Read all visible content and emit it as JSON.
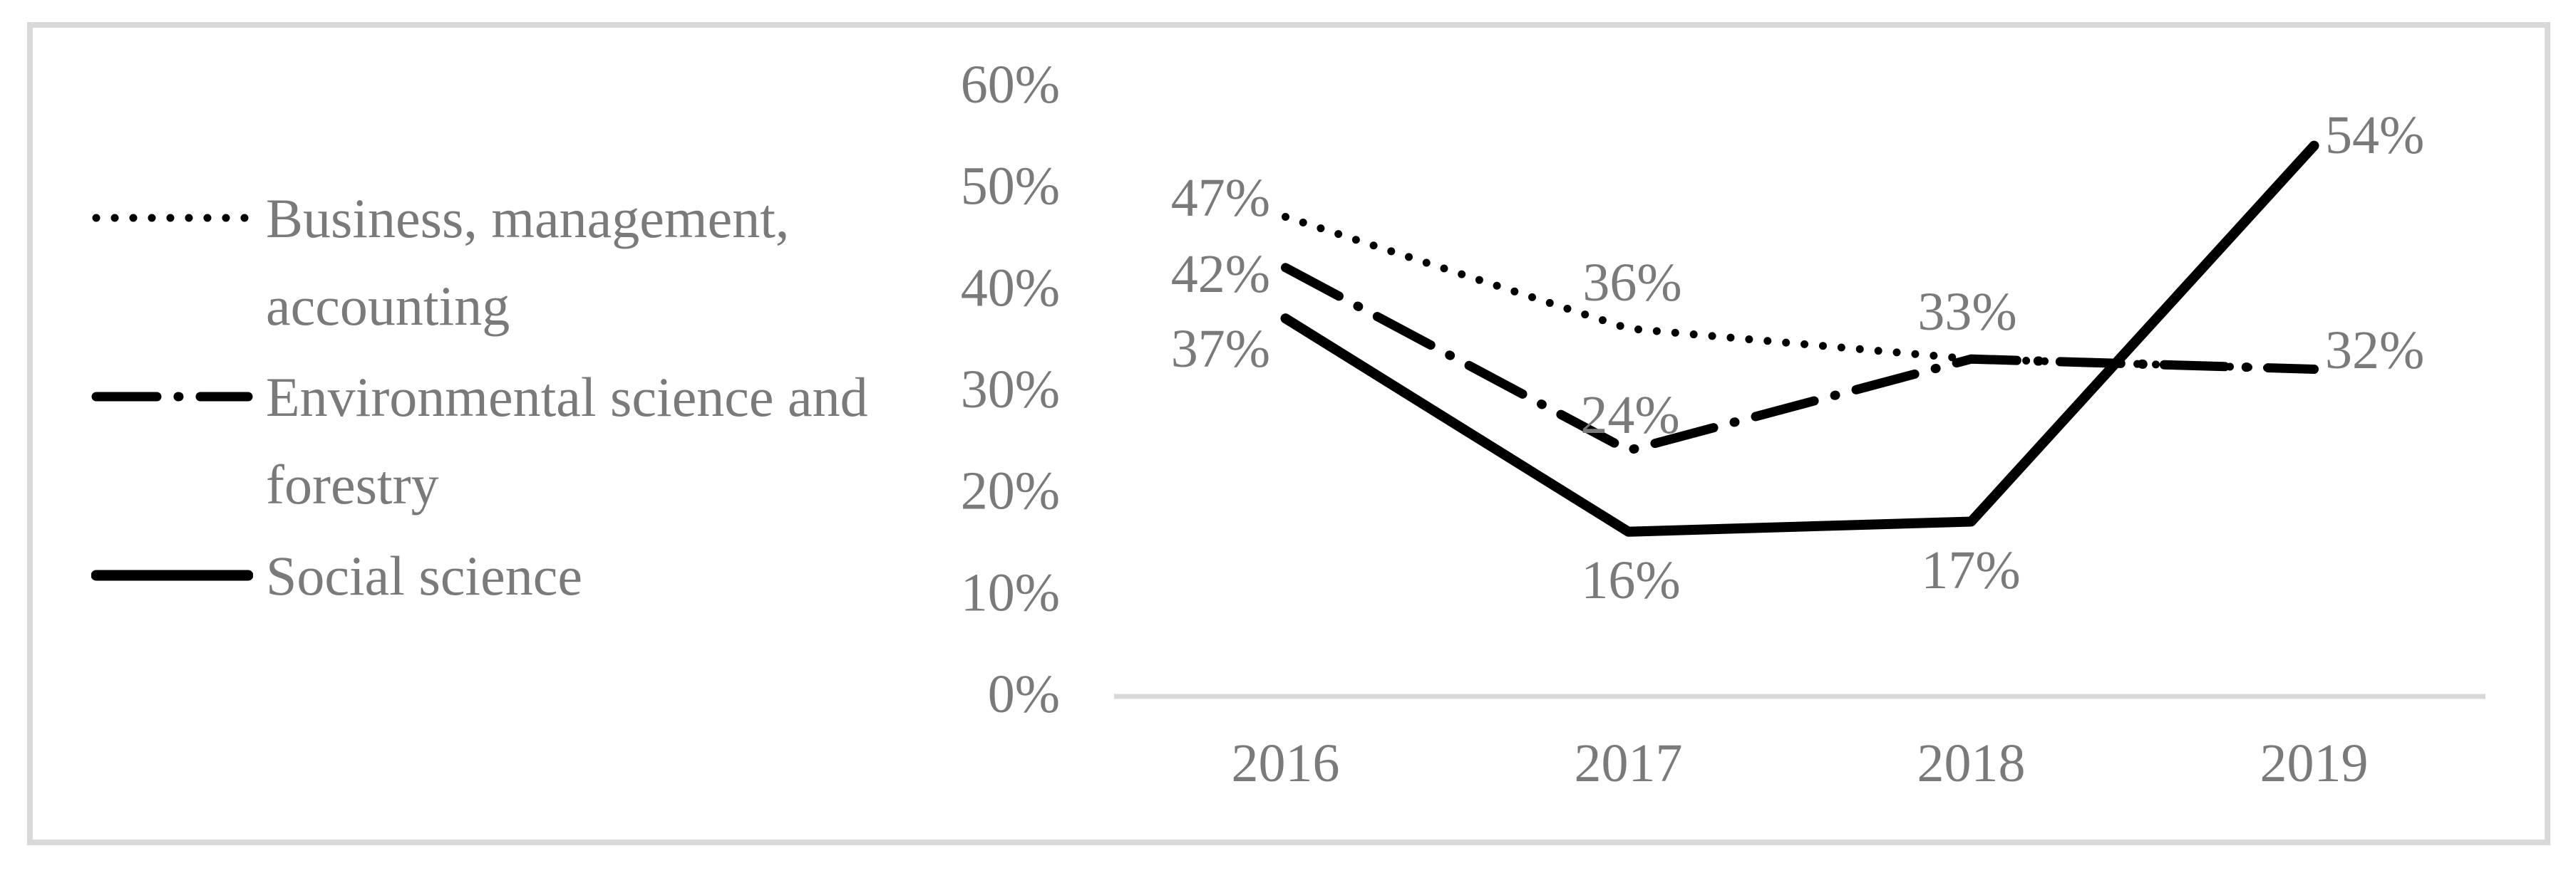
{
  "figure": {
    "colors": {
      "line": "#000000",
      "label_text": "#7a7a7a",
      "axis_line": "#d9d9d9",
      "frame_border": "#d9d9d9",
      "background": "#ffffff"
    }
  },
  "chart_data": {
    "type": "line",
    "title": "",
    "xlabel": "",
    "ylabel": "",
    "categories": [
      "2016",
      "2017",
      "2018",
      "2019"
    ],
    "series": [
      {
        "name": "Business, management, accounting",
        "line_style": "dotted",
        "values": [
          47,
          36,
          33,
          32
        ],
        "point_labels": [
          "47%",
          "36%",
          "33%",
          "32%"
        ]
      },
      {
        "name": "Environmental science and forestry",
        "line_style": "dash-dot",
        "values": [
          42,
          24,
          33,
          32
        ],
        "point_labels": [
          "42%",
          "24%",
          "",
          ""
        ]
      },
      {
        "name": "Social science",
        "line_style": "solid",
        "values": [
          37,
          16,
          17,
          54
        ],
        "point_labels": [
          "37%",
          "16%",
          "17%",
          "54%"
        ]
      }
    ],
    "yticks": [
      "0%",
      "10%",
      "20%",
      "30%",
      "40%",
      "50%",
      "60%"
    ],
    "ylim": [
      0,
      60
    ],
    "grid": false,
    "legend_position": "left"
  }
}
